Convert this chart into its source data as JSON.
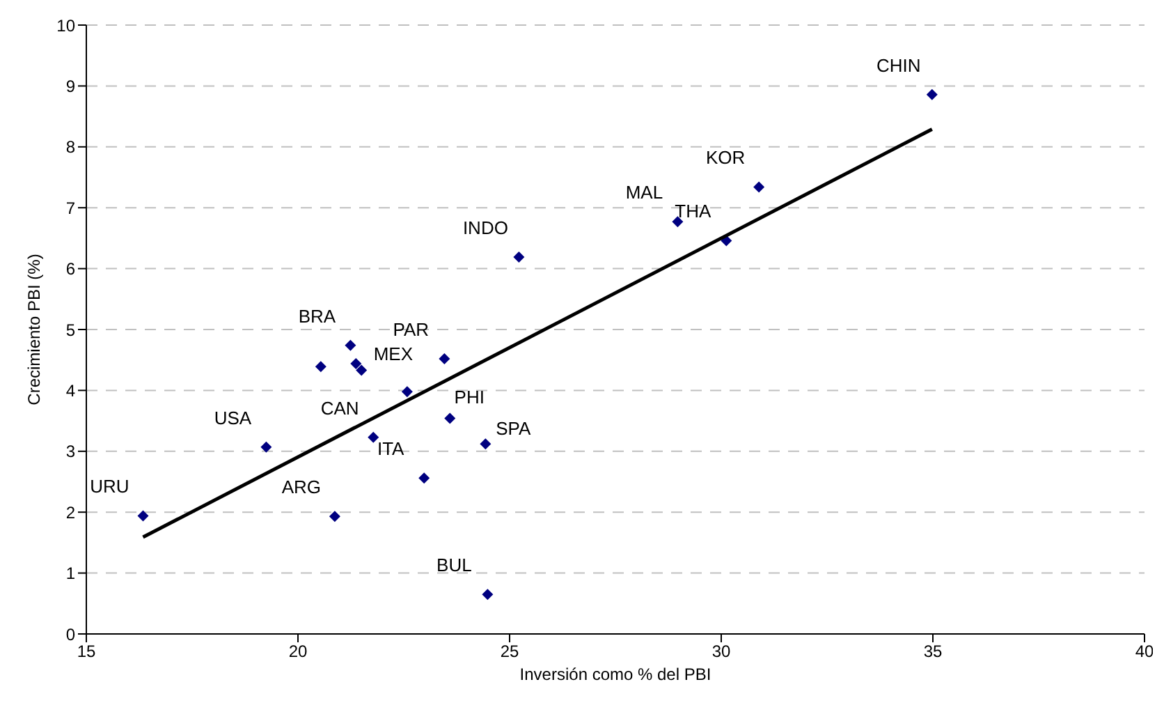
{
  "chart_data": {
    "type": "scatter",
    "xlabel": "Inversión como % del PBI",
    "ylabel": "Crecimiento PBI (%)",
    "xlim": [
      15,
      40
    ],
    "xticks": [
      15,
      20,
      25,
      30,
      35,
      40
    ],
    "ylim": [
      0,
      10
    ],
    "yticks": [
      0,
      1,
      2,
      3,
      4,
      5,
      6,
      7,
      8,
      9,
      10
    ],
    "grid": "y",
    "legend": false,
    "series": [
      {
        "color": "#000080",
        "marker": "diamond",
        "x": [
          16.34,
          19.25,
          20.87,
          20.54,
          21.24,
          21.37,
          21.5,
          21.78,
          22.58,
          22.98,
          23.46,
          23.59,
          24.43,
          24.48,
          25.22,
          28.97,
          30.12,
          30.89,
          34.98
        ],
        "values": [
          1.94,
          3.07,
          1.93,
          4.39,
          4.74,
          4.44,
          4.33,
          3.23,
          3.98,
          2.56,
          4.52,
          3.54,
          3.12,
          0.65,
          6.19,
          6.77,
          6.46,
          7.34,
          8.86
        ]
      },
      {
        "type": "line",
        "color": "#000000",
        "marker": "none",
        "line_style": "solid",
        "x": [
          16.34,
          34.98
        ],
        "values": [
          1.59,
          8.29
        ]
      }
    ],
    "annotations": [
      {
        "text": "URU",
        "x": 16.34,
        "y": 1.94
      },
      {
        "text": "USA",
        "x": 19.25,
        "y": 3.07
      },
      {
        "text": "ARG",
        "x": 20.87,
        "y": 1.93
      },
      {
        "text": "BRA",
        "x": 21.24,
        "y": 4.74
      },
      {
        "text": "MEX",
        "x": 22.58,
        "y": 3.98
      },
      {
        "text": "PAR",
        "x": 23.46,
        "y": 4.52
      },
      {
        "text": "PHI",
        "x": 23.59,
        "y": 3.54
      },
      {
        "text": "CAN",
        "x": 21.78,
        "y": 3.23
      },
      {
        "text": "ITA",
        "x": 22.98,
        "y": 2.56
      },
      {
        "text": "SPA",
        "x": 24.43,
        "y": 3.12
      },
      {
        "text": "BUL",
        "x": 24.48,
        "y": 0.65
      },
      {
        "text": "INDO",
        "x": 25.22,
        "y": 6.19
      },
      {
        "text": "MAL",
        "x": 28.97,
        "y": 6.77
      },
      {
        "text": "THA",
        "x": 30.12,
        "y": 6.46
      },
      {
        "text": "KOR",
        "x": 30.89,
        "y": 7.34
      },
      {
        "text": "CHIN",
        "x": 34.98,
        "y": 8.86
      }
    ]
  }
}
